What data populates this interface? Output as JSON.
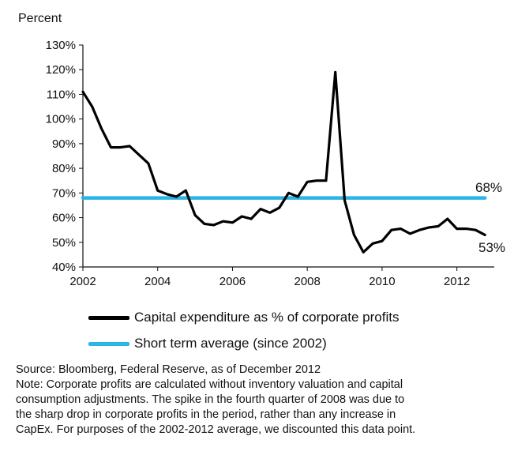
{
  "chart_data": {
    "type": "line",
    "ylabel": "Percent",
    "xlabel": "",
    "x_ticks": [
      "2002",
      "2004",
      "2006",
      "2008",
      "2010",
      "2012"
    ],
    "y_ticks": [
      "40%",
      "50%",
      "60%",
      "70%",
      "80%",
      "90%",
      "100%",
      "110%",
      "120%",
      "130%"
    ],
    "ylim": [
      40,
      130
    ],
    "xlim": [
      2002,
      2013
    ],
    "grid": false,
    "series": [
      {
        "name": "Capital expenditure as % of corporate profits",
        "color": "#000000",
        "x": [
          2002.0,
          2002.25,
          2002.5,
          2002.75,
          2003.0,
          2003.25,
          2003.5,
          2003.75,
          2004.0,
          2004.25,
          2004.5,
          2004.75,
          2005.0,
          2005.25,
          2005.5,
          2005.75,
          2006.0,
          2006.25,
          2006.5,
          2006.75,
          2007.0,
          2007.25,
          2007.5,
          2007.75,
          2008.0,
          2008.25,
          2008.5,
          2008.75,
          2009.0,
          2009.25,
          2009.5,
          2009.75,
          2010.0,
          2010.25,
          2010.5,
          2010.75,
          2011.0,
          2011.25,
          2011.5,
          2011.75,
          2012.0,
          2012.25,
          2012.5,
          2012.75
        ],
        "y": [
          111,
          105,
          96,
          88.5,
          88.5,
          89,
          85.5,
          82,
          71,
          69.5,
          68.5,
          71,
          61,
          57.5,
          57,
          58.5,
          58,
          60.5,
          59.5,
          63.5,
          62,
          64,
          70,
          68.5,
          74.5,
          75,
          75,
          119,
          67,
          53,
          46,
          49.5,
          50.5,
          55,
          55.5,
          53.5,
          55,
          56,
          56.5,
          59.5,
          55.5,
          55.5,
          55,
          53
        ]
      },
      {
        "name": "Short term average (since 2002)",
        "color": "#29b6e6",
        "x": [
          2002.0,
          2012.75
        ],
        "y": [
          68,
          68
        ]
      }
    ],
    "annotations": [
      "68%",
      "53%"
    ],
    "legend_position": "bottom-left"
  },
  "notes": {
    "source": "Source: Bloomberg, Federal Reserve, as of December 2012",
    "note_lines": [
      "Note: Corporate profits are calculated without inventory valuation and capital",
      "consumption adjustments. The spike in the fourth quarter of 2008 was due to",
      "the sharp drop in corporate profits in the period, rather than any increase in",
      "CapEx. For purposes of the 2002-2012 average, we discounted this data point."
    ]
  }
}
